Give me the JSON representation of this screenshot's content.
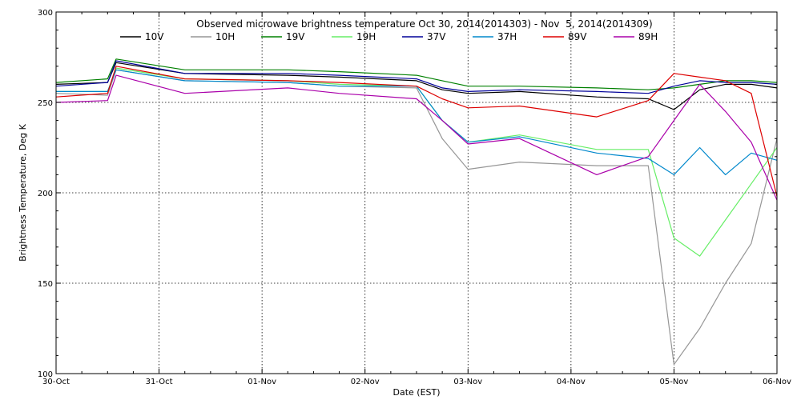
{
  "chart_data": {
    "type": "line",
    "title": "Observed microwave brightness temperature Oct 30, 2014(2014303) - Nov  5, 2014(2014309)",
    "xlabel": "Date (EST)",
    "ylabel": "Brightness Temperature, Deg K",
    "ylim": [
      100,
      300
    ],
    "xlim": [
      "2014-10-30",
      "2014-11-06"
    ],
    "x_ticks": [
      "30-Oct",
      "31-Oct",
      "01-Nov",
      "02-Nov",
      "03-Nov",
      "04-Nov",
      "05-Nov",
      "06-Nov"
    ],
    "y_ticks": [
      100,
      150,
      200,
      250,
      300
    ],
    "grid": true,
    "legend_position": "top",
    "series": [
      {
        "name": "10V",
        "color": "#000000",
        "x": [
          "2014-10-30 00:00",
          "2014-10-30 12:00",
          "2014-10-30 14:00",
          "2014-10-31 06:00",
          "2014-11-01 06:00",
          "2014-11-01 18:00",
          "2014-11-02 12:00",
          "2014-11-02 18:00",
          "2014-11-03 00:00",
          "2014-11-03 12:00",
          "2014-11-04 06:00",
          "2014-11-04 18:00",
          "2014-11-05 00:00",
          "2014-11-05 06:00",
          "2014-11-05 12:00",
          "2014-11-05 18:00",
          "2014-11-06 00:00"
        ],
        "values": [
          260,
          261,
          272,
          266,
          265,
          264,
          262,
          257,
          255,
          256,
          253,
          252,
          246,
          257,
          260,
          260,
          258
        ]
      },
      {
        "name": "10H",
        "color": "#969696",
        "x": [
          "2014-10-30 00:00",
          "2014-10-30 12:00",
          "2014-10-30 14:00",
          "2014-10-31 06:00",
          "2014-11-01 06:00",
          "2014-11-01 18:00",
          "2014-11-02 12:00",
          "2014-11-02 18:00",
          "2014-11-03 00:00",
          "2014-11-03 12:00",
          "2014-11-04 06:00",
          "2014-11-04 18:00",
          "2014-11-05 00:00",
          "2014-11-05 06:00",
          "2014-11-05 12:00",
          "2014-11-05 18:00",
          "2014-11-06 00:00"
        ],
        "values": [
          255,
          254,
          268,
          262,
          261,
          259,
          258,
          230,
          213,
          217,
          215,
          215,
          105,
          125,
          150,
          172,
          230
        ]
      },
      {
        "name": "19V",
        "color": "#008000",
        "x": [
          "2014-10-30 00:00",
          "2014-10-30 12:00",
          "2014-10-30 14:00",
          "2014-10-31 06:00",
          "2014-11-01 06:00",
          "2014-11-01 18:00",
          "2014-11-02 12:00",
          "2014-11-02 18:00",
          "2014-11-03 00:00",
          "2014-11-03 12:00",
          "2014-11-04 06:00",
          "2014-11-04 18:00",
          "2014-11-05 00:00",
          "2014-11-05 06:00",
          "2014-11-05 12:00",
          "2014-11-05 18:00",
          "2014-11-06 00:00"
        ],
        "values": [
          261,
          263,
          274,
          268,
          268,
          267,
          265,
          262,
          259,
          259,
          258,
          257,
          258,
          260,
          262,
          262,
          261
        ]
      },
      {
        "name": "19H",
        "color": "#66ee66",
        "x": [
          "2014-10-30 00:00",
          "2014-10-30 12:00",
          "2014-10-30 14:00",
          "2014-10-31 06:00",
          "2014-11-01 06:00",
          "2014-11-01 18:00",
          "2014-11-02 12:00",
          "2014-11-02 18:00",
          "2014-11-03 00:00",
          "2014-11-03 12:00",
          "2014-11-04 06:00",
          "2014-11-04 18:00",
          "2014-11-05 00:00",
          "2014-11-05 06:00",
          "2014-11-05 12:00",
          "2014-11-05 18:00",
          "2014-11-06 00:00"
        ],
        "values": [
          256,
          256,
          269,
          263,
          262,
          260,
          259,
          240,
          228,
          232,
          224,
          224,
          175,
          165,
          185,
          205,
          225
        ]
      },
      {
        "name": "37V",
        "color": "#000099",
        "x": [
          "2014-10-30 00:00",
          "2014-10-30 12:00",
          "2014-10-30 14:00",
          "2014-10-31 06:00",
          "2014-11-01 06:00",
          "2014-11-01 18:00",
          "2014-11-02 12:00",
          "2014-11-02 18:00",
          "2014-11-03 00:00",
          "2014-11-03 12:00",
          "2014-11-04 06:00",
          "2014-11-04 18:00",
          "2014-11-05 00:00",
          "2014-11-05 06:00",
          "2014-11-05 12:00",
          "2014-11-05 18:00",
          "2014-11-06 00:00"
        ],
        "values": [
          259,
          261,
          273,
          266,
          266,
          265,
          263,
          258,
          256,
          257,
          256,
          255,
          259,
          262,
          261,
          261,
          260
        ]
      },
      {
        "name": "37H",
        "color": "#0088cc",
        "x": [
          "2014-10-30 00:00",
          "2014-10-30 12:00",
          "2014-10-30 14:00",
          "2014-10-31 06:00",
          "2014-11-01 06:00",
          "2014-11-01 18:00",
          "2014-11-02 12:00",
          "2014-11-02 18:00",
          "2014-11-03 00:00",
          "2014-11-03 12:00",
          "2014-11-04 06:00",
          "2014-11-04 18:00",
          "2014-11-05 00:00",
          "2014-11-05 06:00",
          "2014-11-05 12:00",
          "2014-11-05 18:00",
          "2014-11-06 00:00"
        ],
        "values": [
          256,
          256,
          268,
          262,
          261,
          259,
          259,
          240,
          228,
          231,
          222,
          219,
          210,
          225,
          210,
          222,
          218
        ]
      },
      {
        "name": "89V",
        "color": "#dd0000",
        "x": [
          "2014-10-30 00:00",
          "2014-10-30 12:00",
          "2014-10-30 14:00",
          "2014-10-31 06:00",
          "2014-11-01 06:00",
          "2014-11-01 18:00",
          "2014-11-02 12:00",
          "2014-11-02 18:00",
          "2014-11-03 00:00",
          "2014-11-03 12:00",
          "2014-11-04 06:00",
          "2014-11-04 18:00",
          "2014-11-05 00:00",
          "2014-11-05 06:00",
          "2014-11-05 12:00",
          "2014-11-05 18:00",
          "2014-11-06 00:00"
        ],
        "values": [
          253,
          255,
          270,
          263,
          262,
          261,
          259,
          252,
          247,
          248,
          242,
          251,
          266,
          264,
          262,
          255,
          198
        ]
      },
      {
        "name": "89H",
        "color": "#aa00aa",
        "x": [
          "2014-10-30 00:00",
          "2014-10-30 12:00",
          "2014-10-30 14:00",
          "2014-10-31 06:00",
          "2014-11-01 06:00",
          "2014-11-01 18:00",
          "2014-11-02 12:00",
          "2014-11-02 18:00",
          "2014-11-03 00:00",
          "2014-11-03 12:00",
          "2014-11-04 06:00",
          "2014-11-04 18:00",
          "2014-11-05 00:00",
          "2014-11-05 06:00",
          "2014-11-05 12:00",
          "2014-11-05 18:00",
          "2014-11-06 00:00"
        ],
        "values": [
          250,
          251,
          265,
          255,
          258,
          255,
          252,
          240,
          227,
          230,
          210,
          220,
          240,
          260,
          245,
          228,
          196
        ]
      }
    ]
  }
}
